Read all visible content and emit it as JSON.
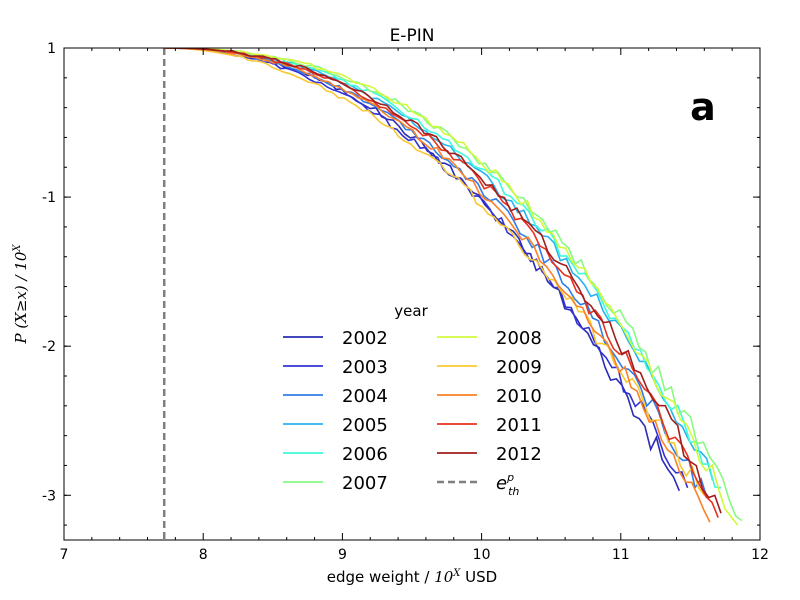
{
  "chart_data": {
    "type": "line",
    "title": "E-PIN",
    "panel_label": "a",
    "xlabel": {
      "prefix": "edge weight / ",
      "math": "10",
      "sup": "X",
      "suffix": " USD"
    },
    "ylabel": {
      "math": "P (X≥x) / 10",
      "sup": "X"
    },
    "xlim": [
      7,
      12
    ],
    "ylim": [
      -3.3,
      0
    ],
    "xticks": [
      7,
      8,
      9,
      10,
      11,
      12
    ],
    "yticks": [
      0,
      -1,
      -2,
      -3
    ],
    "xtick_labels": [
      "7",
      "8",
      "9",
      "10",
      "11",
      "12"
    ],
    "ytick_labels": [
      "1",
      "-1",
      "-2",
      "-3"
    ],
    "threshold": {
      "x": 7.72,
      "label": "e",
      "label_sub": "th",
      "label_sup": "p",
      "color": "#7f7f7f"
    },
    "legend": {
      "title": "year",
      "position": "lower-center",
      "columns": 2
    },
    "series": [
      {
        "name": "2002",
        "color": "#2b2bb5",
        "x_end": 11.42,
        "y_end": -2.97,
        "knee": 1.0
      },
      {
        "name": "2003",
        "color": "#3232d6",
        "x_end": 11.48,
        "y_end": -2.95,
        "knee": 0.95
      },
      {
        "name": "2004",
        "color": "#2f7de6",
        "x_end": 11.62,
        "y_end": -3.02,
        "knee": 0.98
      },
      {
        "name": "2005",
        "color": "#27b4ee",
        "x_end": 11.66,
        "y_end": -2.9,
        "knee": 1.02
      },
      {
        "name": "2006",
        "color": "#3dfadc",
        "x_end": 11.72,
        "y_end": -2.95,
        "knee": 1.04
      },
      {
        "name": "2007",
        "color": "#87fa82",
        "x_end": 11.87,
        "y_end": -3.17,
        "knee": 1.08
      },
      {
        "name": "2008",
        "color": "#d2fa3c",
        "x_end": 11.84,
        "y_end": -3.2,
        "knee": 1.1
      },
      {
        "name": "2009",
        "color": "#fac832",
        "x_end": 11.6,
        "y_end": -3.0,
        "knee": 0.9
      },
      {
        "name": "2010",
        "color": "#fa8228",
        "x_end": 11.64,
        "y_end": -3.18,
        "knee": 1.0
      },
      {
        "name": "2011",
        "color": "#e6321e",
        "x_end": 11.7,
        "y_end": -3.15,
        "knee": 1.02
      },
      {
        "name": "2012",
        "color": "#a01e1e",
        "x_end": 11.72,
        "y_end": -3.12,
        "knee": 1.03
      }
    ]
  }
}
